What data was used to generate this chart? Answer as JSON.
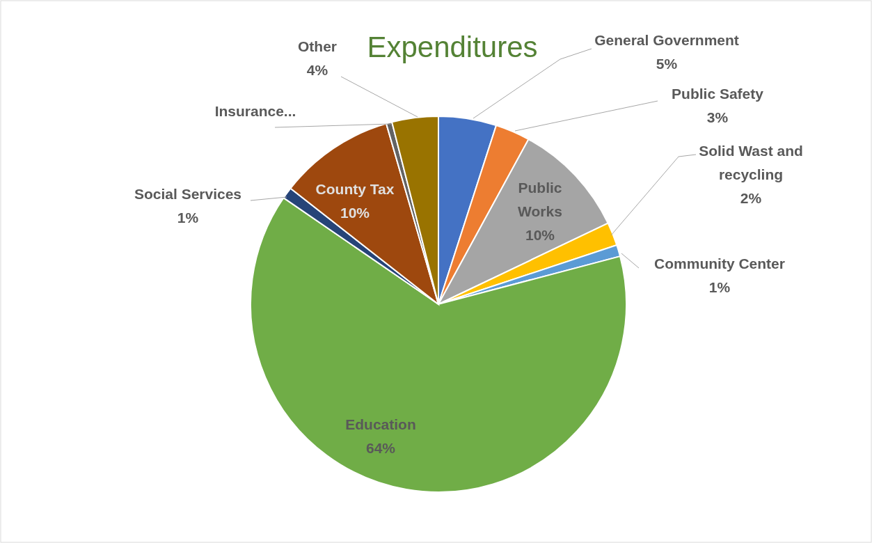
{
  "chart_data": {
    "type": "pie",
    "title": "Expenditures",
    "categories": [
      "General Government",
      "Public Safety",
      "Public Works",
      "Solid Wast and recycling",
      "Community Center",
      "Education",
      "Social Services",
      "County Tax",
      "Insurance...",
      "Other"
    ],
    "values": [
      5,
      3,
      10,
      2,
      1,
      64,
      1,
      10,
      0.5,
      4
    ],
    "value_labels": [
      "5%",
      "3%",
      "10%",
      "2%",
      "1%",
      "64%",
      "1%",
      "10%",
      null,
      "4%"
    ],
    "colors": [
      "#4472c4",
      "#ed7d31",
      "#a5a5a5",
      "#ffc000",
      "#5b9bd5",
      "#70ad47",
      "#264478",
      "#9e480e",
      "#636363",
      "#997300"
    ]
  }
}
